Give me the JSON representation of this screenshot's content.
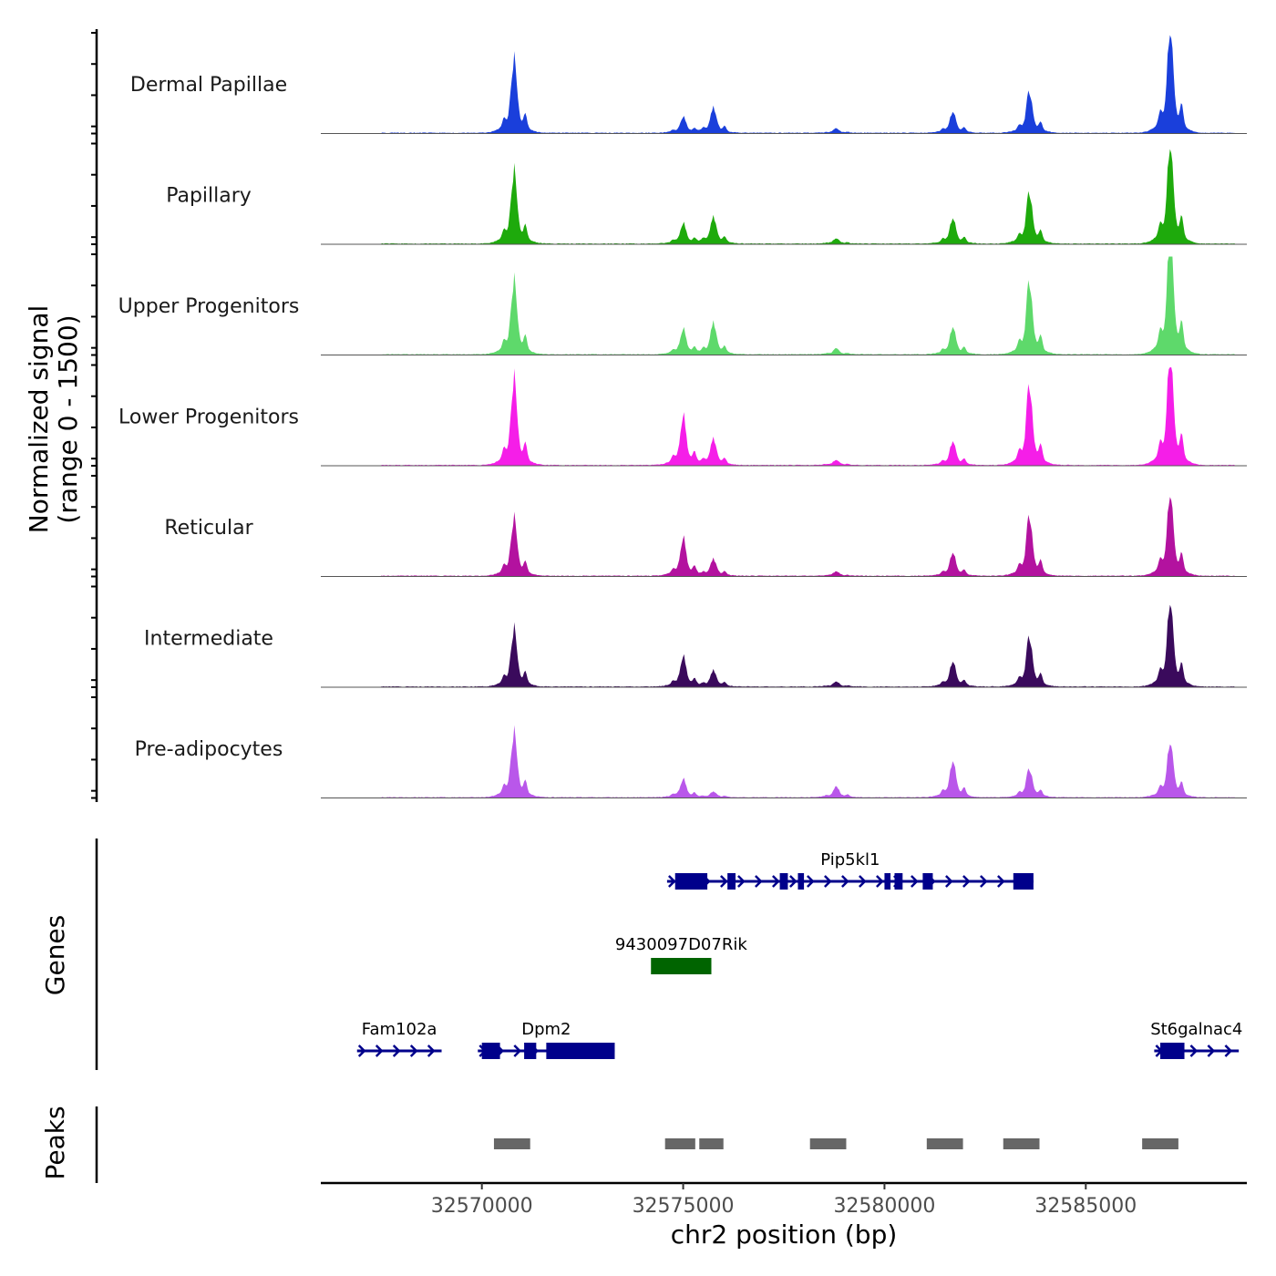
{
  "chart_data": {
    "type": "area",
    "title": "",
    "y_axis_title_line1": "Normalized signal",
    "y_axis_title_line2": "(range 0 - 1500)",
    "ylim": [
      0,
      1500
    ],
    "xlabel": "chr2 position (bp)",
    "xlim": [
      32566000,
      32589000
    ],
    "x_ticks": [
      32570000,
      32575000,
      32580000,
      32585000
    ],
    "x_tick_labels": [
      "32570000",
      "32575000",
      "32580000",
      "32585000"
    ],
    "peaks_summit_positions": [
      32570800,
      32575000,
      32575750,
      32578800,
      32581700,
      32583600,
      32587100
    ],
    "series": [
      {
        "name": "Dermal Papillae",
        "color": "#1a3fdb",
        "values": [
          1020,
          220,
          360,
          60,
          300,
          580,
          1520
        ]
      },
      {
        "name": "Papillary",
        "color": "#1eaa0c",
        "values": [
          1000,
          280,
          380,
          70,
          360,
          720,
          1460
        ]
      },
      {
        "name": "Upper Progenitors",
        "color": "#5ed96b",
        "values": [
          1020,
          350,
          450,
          80,
          390,
          1020,
          1780
        ]
      },
      {
        "name": "Lower Progenitors",
        "color": "#f51ee8",
        "values": [
          1200,
          680,
          380,
          70,
          340,
          1120,
          1660
        ]
      },
      {
        "name": "Reticular",
        "color": "#b3129f",
        "values": [
          800,
          520,
          240,
          60,
          330,
          840,
          1220
        ]
      },
      {
        "name": "Intermediate",
        "color": "#3a0a5c",
        "values": [
          800,
          420,
          230,
          70,
          360,
          700,
          1260
        ]
      },
      {
        "name": "Pre-adipocytes",
        "color": "#b957ea",
        "values": [
          900,
          250,
          80,
          150,
          520,
          400,
          820
        ]
      }
    ],
    "genes_title": "Genes",
    "genes": [
      {
        "name": "Pip5kl1",
        "color": "#00008b",
        "start": 32574600,
        "end": 32583700,
        "row": 0,
        "strand": "+",
        "exons": [
          [
            32574800,
            32575600
          ],
          [
            32576100,
            32576300
          ],
          [
            32577400,
            32577600
          ],
          [
            32577850,
            32578000
          ],
          [
            32580000,
            32580150
          ],
          [
            32580250,
            32580450
          ],
          [
            32580950,
            32581200
          ],
          [
            32583200,
            32583700
          ]
        ]
      },
      {
        "name": "9430097D07Rik",
        "color": "#006400",
        "start": 32574200,
        "end": 32575700,
        "row": 1,
        "strand": "",
        "exons": [
          [
            32574200,
            32575700
          ]
        ]
      },
      {
        "name": "Fam102a",
        "color": "#00008b",
        "start": 32566900,
        "end": 32569000,
        "row": 2,
        "strand": "+",
        "exons": []
      },
      {
        "name": "Dpm2",
        "color": "#00008b",
        "start": 32569900,
        "end": 32573300,
        "row": 2,
        "strand": "+",
        "exons": [
          [
            32570000,
            32570450
          ],
          [
            32571050,
            32571350
          ],
          [
            32571600,
            32573300
          ]
        ]
      },
      {
        "name": "St6galnac4",
        "color": "#00008b",
        "start": 32586700,
        "end": 32588800,
        "row": 2,
        "strand": "+",
        "exons": [
          [
            32586850,
            32587450
          ]
        ]
      }
    ],
    "peaks_title": "Peaks",
    "peaks_color": "#666666",
    "peaks": [
      [
        32570300,
        32571200
      ],
      [
        32574550,
        32575300
      ],
      [
        32575400,
        32576000
      ],
      [
        32578150,
        32579050
      ],
      [
        32581050,
        32581950
      ],
      [
        32582950,
        32583850
      ],
      [
        32586400,
        32587300
      ]
    ]
  }
}
